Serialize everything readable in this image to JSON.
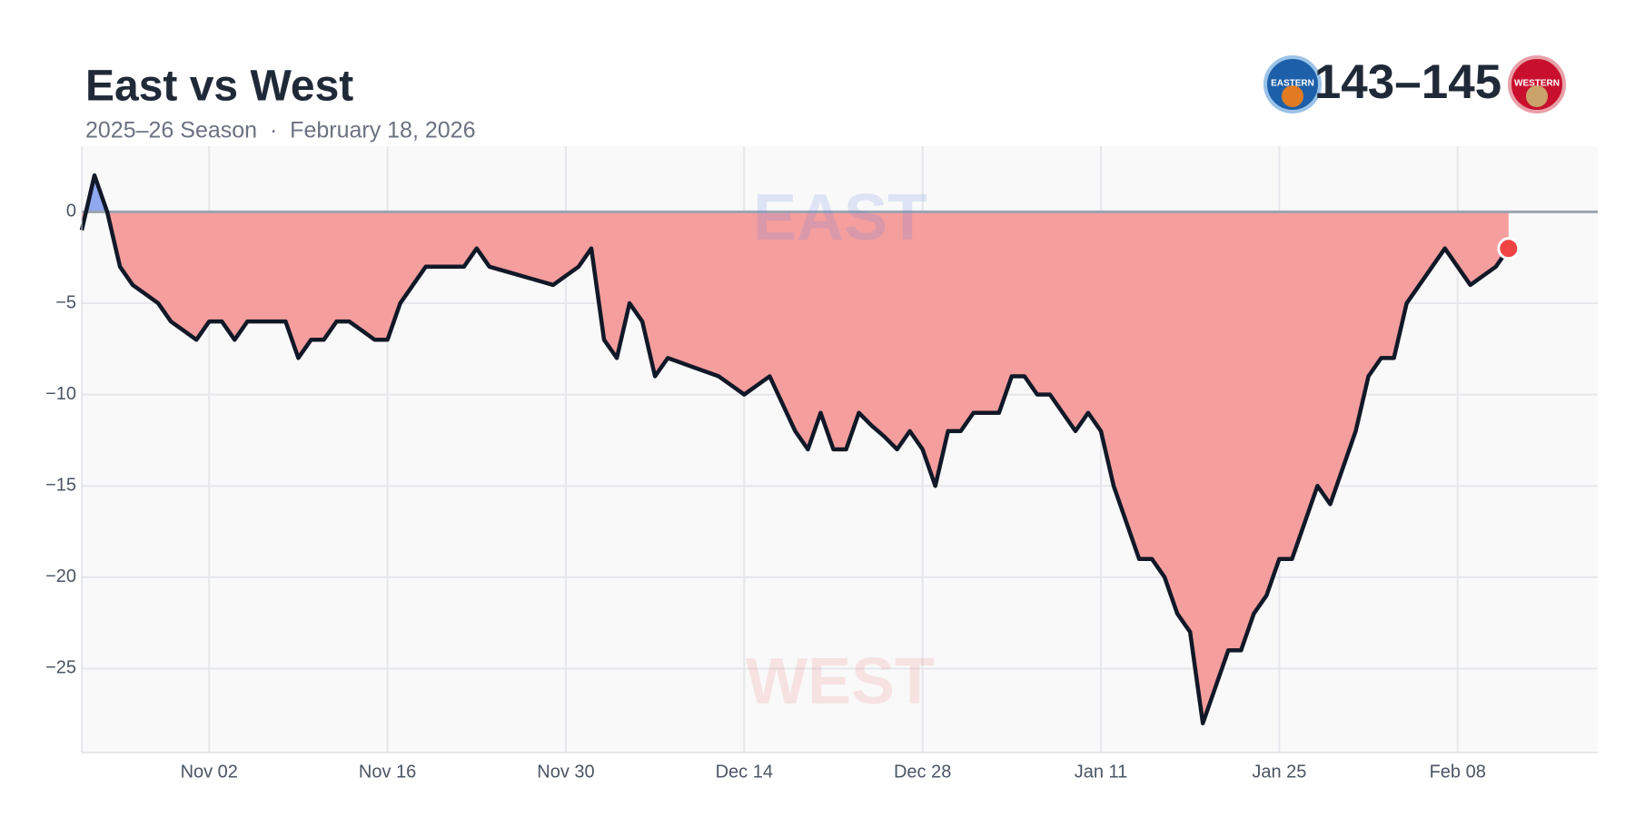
{
  "chart_data": {
    "type": "line",
    "title": "East vs West",
    "subtitle": "2025–26 Season  ·  February 18, 2026",
    "score": "143–145",
    "east_logo": "EASTERN",
    "west_logo": "WESTERN",
    "above_label": "EAST",
    "below_label": "WEST",
    "x": [
      "Oct 23",
      "Oct 24",
      "Oct 25",
      "Oct 26",
      "Oct 27",
      "Oct 28",
      "Oct 29",
      "Oct 30",
      "Oct 31",
      "Nov 01",
      "Nov 02",
      "Nov 03",
      "Nov 04",
      "Nov 05",
      "Nov 06",
      "Nov 07",
      "Nov 08",
      "Nov 09",
      "Nov 10",
      "Nov 11",
      "Nov 12",
      "Nov 13",
      "Nov 14",
      "Nov 15",
      "Nov 16",
      "Nov 17",
      "Nov 18",
      "Nov 19",
      "Nov 20",
      "Nov 21",
      "Nov 22",
      "Nov 23",
      "Nov 24",
      "Nov 25",
      "Nov 26",
      "Nov 27",
      "Nov 28",
      "Nov 29",
      "Nov 30",
      "Dec 01",
      "Dec 02",
      "Dec 03",
      "Dec 04",
      "Dec 05",
      "Dec 06",
      "Dec 07",
      "Dec 08",
      "Dec 09",
      "Dec 10",
      "Dec 11",
      "Dec 12",
      "Dec 13",
      "Dec 14",
      "Dec 15",
      "Dec 16",
      "Dec 17",
      "Dec 18",
      "Dec 19",
      "Dec 20",
      "Dec 21",
      "Dec 22",
      "Dec 23",
      "Dec 24",
      "Dec 25",
      "Dec 26",
      "Dec 27",
      "Dec 28",
      "Dec 29",
      "Dec 30",
      "Dec 31",
      "Jan 01",
      "Jan 02",
      "Jan 03",
      "Jan 04",
      "Jan 05",
      "Jan 06",
      "Jan 07",
      "Jan 08",
      "Jan 09",
      "Jan 10",
      "Jan 11",
      "Jan 12",
      "Jan 13",
      "Jan 14",
      "Jan 15",
      "Jan 16",
      "Jan 17",
      "Jan 18",
      "Jan 19",
      "Jan 20",
      "Jan 21",
      "Jan 22",
      "Jan 23",
      "Jan 24",
      "Jan 25",
      "Jan 26",
      "Jan 27",
      "Jan 28",
      "Jan 29",
      "Jan 30",
      "Jan 31",
      "Feb 01",
      "Feb 02",
      "Feb 03",
      "Feb 04",
      "Feb 05",
      "Feb 06",
      "Feb 07",
      "Feb 08",
      "Feb 09",
      "Feb 10",
      "Feb 11",
      "Feb 12"
    ],
    "series": [
      {
        "color": "#111827",
        "values": [
          -1,
          2,
          0,
          -3,
          -4,
          -4.5,
          -5,
          -6,
          -6.5,
          -7,
          -6,
          -6,
          -7,
          -6,
          -6,
          -6,
          -6,
          -8,
          -7,
          -7,
          -6,
          -6,
          -6.5,
          -7,
          -7,
          -5,
          -4,
          -3,
          -3,
          -3,
          -3,
          -2,
          -3,
          -3.2,
          -3.4,
          -3.6,
          -3.8,
          -4,
          -3.5,
          -3,
          -2,
          -7,
          -8,
          -5,
          -6,
          -9,
          -8,
          -8.25,
          -8.5,
          -8.75,
          -9,
          -9.5,
          -10,
          -9.5,
          -9,
          -10.5,
          -12,
          -13,
          -11,
          -13,
          -13,
          -11,
          -11.7,
          -12.3,
          -13,
          -12,
          -13,
          -15,
          -12,
          -12,
          -11,
          -11,
          -11,
          -9,
          -9,
          -10,
          -10,
          -11,
          -12,
          -11,
          -12,
          -15,
          -17,
          -19,
          -19,
          -20,
          -22,
          -23,
          -28,
          -26,
          -24,
          -24,
          -22,
          -21,
          -19,
          -19,
          -17,
          -15,
          -16,
          -14,
          -12,
          -9,
          -8,
          -8,
          -5,
          -4,
          -3,
          -2,
          -3,
          -4,
          -3.5,
          -3,
          -2
        ]
      }
    ],
    "above_color": "#8fa8ee",
    "below_color": "#f59e9e",
    "marker_color": "#ef4444",
    "xlim": [
      "Oct 23",
      "Feb 19"
    ],
    "xticks": [
      "Nov 02",
      "Nov 16",
      "Nov 30",
      "Dec 14",
      "Dec 28",
      "Jan 11",
      "Jan 25",
      "Feb 08"
    ],
    "ylim": [
      -29.6,
      3.6
    ],
    "yticks": [
      {
        "value": -25,
        "label": "−25"
      },
      {
        "value": -20,
        "label": "−20"
      },
      {
        "value": -15,
        "label": "−15"
      },
      {
        "value": -10,
        "label": "−10"
      },
      {
        "value": -5,
        "label": "−5"
      },
      0
    ],
    "grid": true
  }
}
